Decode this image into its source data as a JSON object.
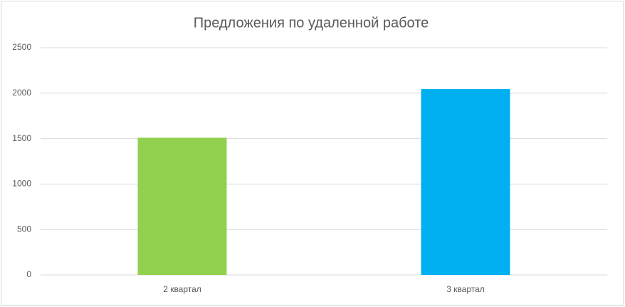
{
  "chart_data": {
    "type": "bar",
    "title": "Предложения по удаленной работе",
    "categories": [
      "2 квартал",
      "3 квартал"
    ],
    "values": [
      1510,
      2045
    ],
    "colors": [
      "#92d050",
      "#00b0f0"
    ],
    "ylim": [
      0,
      2500
    ],
    "yticks": [
      0,
      500,
      1000,
      1500,
      2000,
      2500
    ],
    "grid": true
  }
}
